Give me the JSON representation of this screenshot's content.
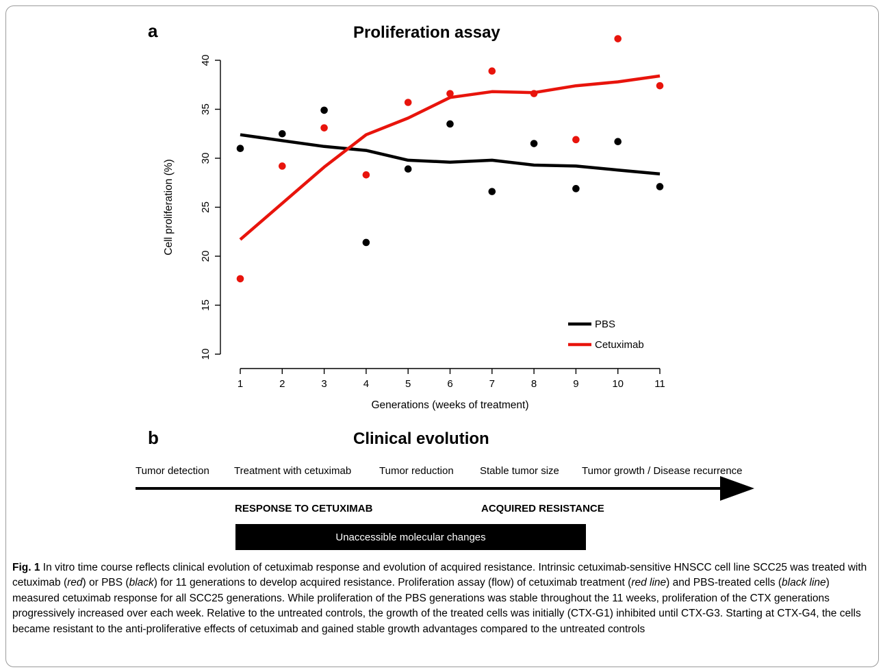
{
  "figure": {
    "panel_a_letter": "a",
    "panel_b_letter": "b"
  },
  "chart_data": {
    "type": "line",
    "title": "Proliferation assay",
    "xlabel": "Generations (weeks of treatment)",
    "ylabel": "Cell proliferation (%)",
    "x": [
      1,
      2,
      3,
      4,
      5,
      6,
      7,
      8,
      9,
      10,
      11
    ],
    "x_ticks": [
      "1",
      "2",
      "3",
      "4",
      "5",
      "6",
      "7",
      "8",
      "9",
      "10",
      "11"
    ],
    "y_ticks": [
      "10",
      "15",
      "20",
      "25",
      "30",
      "35",
      "40"
    ],
    "xlim": [
      1,
      11
    ],
    "ylim": [
      10,
      40
    ],
    "grid": false,
    "legend_position": "bottom-right",
    "series": [
      {
        "name": "PBS",
        "color": "#000000",
        "points": [
          31.0,
          32.5,
          34.9,
          21.4,
          28.9,
          33.5,
          26.6,
          31.5,
          26.9,
          31.7,
          27.1
        ],
        "line": [
          32.4,
          31.8,
          31.2,
          30.8,
          29.8,
          29.6,
          29.8,
          29.3,
          29.2,
          28.8,
          28.4
        ]
      },
      {
        "name": "Cetuximab",
        "color": "#e8140c",
        "points": [
          17.7,
          29.2,
          33.1,
          28.3,
          35.7,
          36.6,
          38.9,
          36.6,
          31.9,
          42.2,
          37.4
        ],
        "line": [
          21.7,
          25.4,
          29.1,
          32.4,
          34.1,
          36.2,
          36.8,
          36.7,
          37.4,
          37.8,
          38.4
        ]
      }
    ]
  },
  "clinical": {
    "title": "Clinical evolution",
    "stages": [
      "Tumor detection",
      "Treatment with cetuximab",
      "Tumor reduction",
      "Stable tumor size",
      "Tumor growth / Disease recurrence"
    ],
    "phase_response": "RESPONSE TO CETUXIMAB",
    "phase_resistance": "ACQUIRED RESISTANCE",
    "molecular_bar": "Unaccessible molecular changes"
  },
  "caption": {
    "label": "Fig. 1",
    "text_1": " In vitro time course reflects clinical evolution of cetuximab response and evolution of acquired resistance. Intrinsic cetuximab-sensitive HNSCC cell line SCC25 was treated with cetuximab (",
    "red": "red",
    "text_2": ") or PBS (",
    "black": "black",
    "text_3": ") for 11 generations to develop acquired resistance. Proliferation assay (flow) of cetuximab treatment (",
    "red_line": "red line",
    "text_4": ") and PBS-treated cells (",
    "black_line": "black line",
    "text_5": ") measured cetuximab response for all SCC25 generations. While proliferation of the PBS generations was stable throughout the 11 weeks, proliferation of the CTX generations progressively increased over each week. Relative to the untreated controls, the growth of the treated cells was initially (CTX-G1) inhibited until CTX-G3. Starting at CTX-G4, the cells became resistant to the anti-proliferative effects of cetuximab and gained stable growth advantages compared to the untreated controls"
  }
}
